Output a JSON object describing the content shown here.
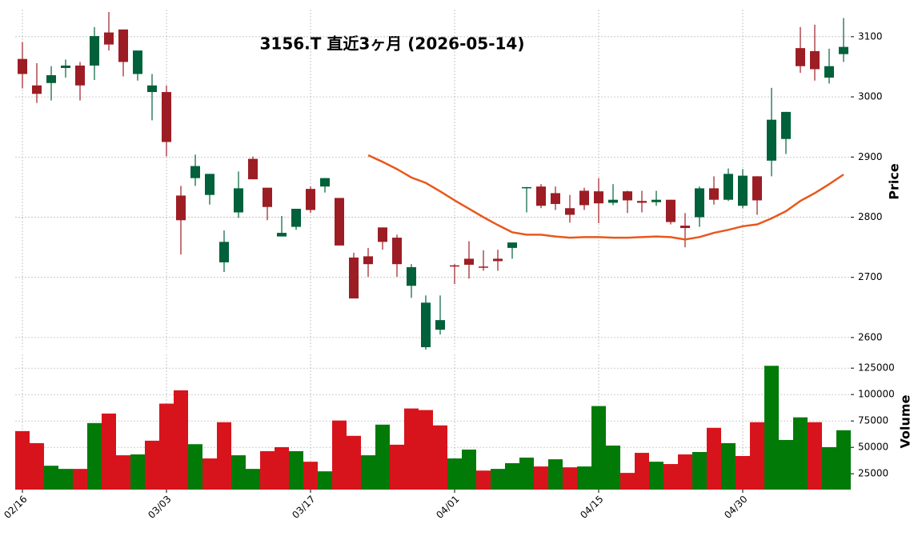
{
  "chart_data": {
    "type": "candlestick",
    "title": "3156.T  直近3ヶ月  (2026-05-14)",
    "categories": [
      "02/16",
      null,
      null,
      null,
      null,
      null,
      null,
      null,
      null,
      null,
      "03/03",
      null,
      null,
      null,
      null,
      null,
      null,
      null,
      null,
      null,
      "03/17",
      null,
      null,
      null,
      null,
      null,
      null,
      null,
      null,
      null,
      "04/01",
      null,
      null,
      null,
      null,
      null,
      null,
      null,
      null,
      null,
      "04/15",
      null,
      null,
      null,
      null,
      null,
      null,
      null,
      null,
      null,
      "04/30",
      null,
      null,
      null,
      null,
      null,
      null,
      null
    ],
    "open": [
      3063,
      3019,
      3023,
      3048,
      3052,
      3052,
      3107,
      3112,
      3038,
      3008,
      3008,
      2836,
      2865,
      2837,
      2725,
      2808,
      2897,
      2849,
      2768,
      2784,
      2847,
      2851,
      2832,
      2733,
      2735,
      2783,
      2766,
      2686,
      2584,
      2613,
      2720,
      2731,
      2718,
      2731,
      2749,
      2848,
      2851,
      2840,
      2815,
      2844,
      2843,
      2824,
      2843,
      2827,
      2825,
      2829,
      2786,
      2800,
      2848,
      2829,
      2819,
      2868,
      2894,
      2930,
      3081,
      3076,
      3032,
      3071
    ],
    "high": [
      3091,
      3056,
      3051,
      3062,
      3058,
      3116,
      3141,
      3112,
      3077,
      3038,
      3019,
      2852,
      2904,
      2872,
      2778,
      2876,
      2901,
      2849,
      2802,
      2814,
      2851,
      2865,
      2832,
      2741,
      2749,
      2783,
      2771,
      2722,
      2670,
      2670,
      2722,
      2760,
      2745,
      2746,
      2758,
      2850,
      2855,
      2851,
      2837,
      2849,
      2865,
      2855,
      2844,
      2844,
      2844,
      2829,
      2807,
      2851,
      2868,
      2881,
      2880,
      2868,
      3015,
      2975,
      3116,
      3120,
      3080,
      3131
    ],
    "low": [
      3014,
      2990,
      2994,
      3032,
      2994,
      3028,
      3077,
      3034,
      3027,
      2961,
      2901,
      2738,
      2852,
      2821,
      2709,
      2799,
      2863,
      2795,
      2768,
      2779,
      2807,
      2841,
      2753,
      2665,
      2701,
      2746,
      2701,
      2666,
      2580,
      2605,
      2689,
      2698,
      2711,
      2711,
      2731,
      2808,
      2815,
      2812,
      2791,
      2812,
      2790,
      2820,
      2807,
      2808,
      2819,
      2788,
      2750,
      2784,
      2821,
      2827,
      2815,
      2804,
      2868,
      2905,
      3040,
      3027,
      3022,
      3058
    ],
    "close": [
      3038,
      3005,
      3036,
      3052,
      3019,
      3101,
      3087,
      3058,
      3077,
      3019,
      2925,
      2795,
      2885,
      2872,
      2759,
      2848,
      2863,
      2817,
      2774,
      2814,
      2812,
      2865,
      2753,
      2665,
      2722,
      2759,
      2722,
      2717,
      2658,
      2629,
      2719,
      2721,
      2717,
      2727,
      2758,
      2850,
      2819,
      2822,
      2804,
      2820,
      2823,
      2829,
      2828,
      2824,
      2829,
      2792,
      2782,
      2848,
      2829,
      2872,
      2869,
      2828,
      2962,
      2975,
      3051,
      3046,
      3051,
      3083
    ],
    "up_color": "#00613a",
    "down_color": "#9c1d24",
    "ylim": [
      2580,
      3145
    ],
    "yticks": [
      2600,
      2700,
      2800,
      2900,
      3000,
      3100
    ],
    "ylabel": "Price",
    "grid": true,
    "ma": {
      "color": "#e8581c",
      "values": [
        null,
        null,
        null,
        null,
        null,
        null,
        null,
        null,
        null,
        null,
        null,
        null,
        null,
        null,
        null,
        null,
        null,
        null,
        null,
        null,
        null,
        null,
        null,
        null,
        2903,
        2892,
        2880,
        2866,
        2857,
        2843,
        2828,
        2814,
        2800,
        2787,
        2775,
        2771,
        2771,
        2768,
        2766,
        2767,
        2767,
        2766,
        2766,
        2767,
        2768,
        2767,
        2763,
        2767,
        2774,
        2779,
        2785,
        2788,
        2798,
        2810,
        2827,
        2840,
        2855,
        2871
      ]
    },
    "volume": {
      "ylabel": "Volume",
      "ylim": [
        10000,
        138000
      ],
      "yticks": [
        25000,
        50000,
        75000,
        100000,
        125000
      ],
      "values": [
        65400,
        54000,
        32600,
        29600,
        29600,
        73000,
        82000,
        42500,
        43300,
        56300,
        91400,
        104000,
        53000,
        39500,
        73800,
        42500,
        29600,
        46400,
        50200,
        46400,
        36400,
        27300,
        75400,
        60900,
        42500,
        71500,
        52500,
        86800,
        85300,
        70800,
        39500,
        47900,
        28000,
        29600,
        35000,
        40300,
        31900,
        38700,
        31100,
        31900,
        89100,
        51700,
        25800,
        44800,
        36400,
        34200,
        43300,
        45600,
        68500,
        54000,
        41800,
        73800,
        127200,
        57000,
        78400,
        73800,
        50200,
        66200
      ],
      "colors": [
        "#d7141c",
        "#d7141c",
        "#027a08",
        "#027a08",
        "#d7141c",
        "#027a08",
        "#d7141c",
        "#d7141c",
        "#027a08",
        "#d7141c",
        "#d7141c",
        "#d7141c",
        "#027a08",
        "#d7141c",
        "#d7141c",
        "#027a08",
        "#027a08",
        "#d7141c",
        "#d7141c",
        "#027a08",
        "#d7141c",
        "#027a08",
        "#d7141c",
        "#d7141c",
        "#027a08",
        "#027a08",
        "#d7141c",
        "#d7141c",
        "#d7141c",
        "#d7141c",
        "#027a08",
        "#027a08",
        "#d7141c",
        "#027a08",
        "#027a08",
        "#027a08",
        "#d7141c",
        "#027a08",
        "#d7141c",
        "#027a08",
        "#027a08",
        "#027a08",
        "#d7141c",
        "#d7141c",
        "#027a08",
        "#d7141c",
        "#d7141c",
        "#027a08",
        "#d7141c",
        "#027a08",
        "#d7141c",
        "#d7141c",
        "#027a08",
        "#027a08",
        "#027a08",
        "#d7141c",
        "#027a08",
        "#027a08"
      ]
    }
  }
}
